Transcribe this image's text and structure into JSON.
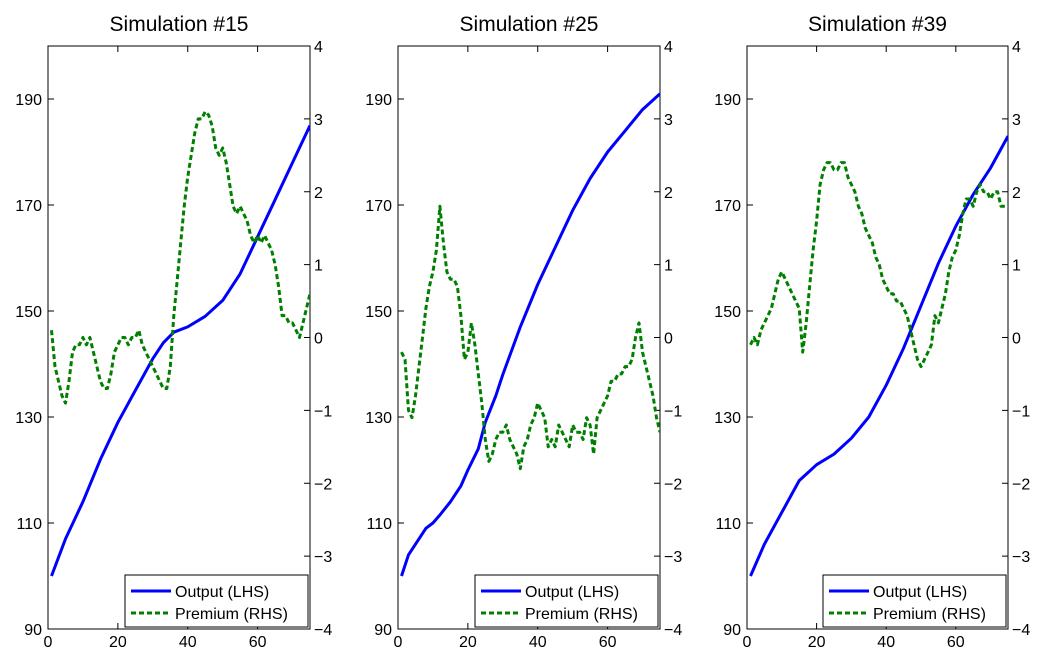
{
  "chart_data": [
    {
      "type": "line",
      "title": "Simulation #15",
      "xlim": [
        0,
        75
      ],
      "xticks": [
        0,
        20,
        40,
        60
      ],
      "ylim_left": [
        90,
        200
      ],
      "yticks_left": [
        90,
        110,
        130,
        150,
        170,
        190
      ],
      "ylim_right": [
        -4,
        4
      ],
      "yticks_right": [
        -4,
        -3,
        -2,
        -1,
        0,
        1,
        2,
        3,
        4
      ],
      "legend": {
        "position": "bottom-right",
        "entries": [
          "Output (LHS)",
          "Premium (RHS)"
        ]
      },
      "series": [
        {
          "name": "Output (LHS)",
          "axis": "left",
          "color": "#0000ff",
          "style": "solid",
          "x": [
            1,
            5,
            10,
            15,
            20,
            25,
            30,
            33,
            36,
            40,
            45,
            50,
            55,
            60,
            65,
            70,
            75
          ],
          "y": [
            100,
            107,
            114,
            122,
            129,
            135,
            141,
            144,
            146,
            147,
            149,
            152,
            157,
            164,
            171,
            178,
            185
          ]
        },
        {
          "name": "Premium (RHS)",
          "axis": "right",
          "color": "#008000",
          "style": "dashed",
          "x": [
            1,
            2,
            3,
            4,
            5,
            6,
            7,
            8,
            9,
            10,
            11,
            12,
            13,
            14,
            15,
            16,
            17,
            18,
            19,
            20,
            21,
            22,
            23,
            24,
            25,
            26,
            27,
            28,
            29,
            30,
            31,
            32,
            33,
            34,
            35,
            36,
            37,
            38,
            39,
            40,
            41,
            42,
            43,
            44,
            45,
            46,
            47,
            48,
            49,
            50,
            51,
            52,
            53,
            54,
            55,
            56,
            57,
            58,
            59,
            60,
            61,
            62,
            63,
            64,
            65,
            66,
            67,
            68,
            69,
            70,
            71,
            72,
            73,
            74,
            75
          ],
          "y": [
            0.1,
            -0.4,
            -0.6,
            -0.8,
            -0.9,
            -0.6,
            -0.2,
            -0.1,
            -0.1,
            0.0,
            -0.1,
            0.0,
            -0.2,
            -0.4,
            -0.6,
            -0.7,
            -0.7,
            -0.5,
            -0.2,
            -0.1,
            0.0,
            0.0,
            -0.1,
            0.0,
            0.0,
            0.1,
            -0.1,
            -0.2,
            -0.3,
            -0.4,
            -0.5,
            -0.6,
            -0.7,
            -0.7,
            -0.4,
            0.3,
            0.8,
            1.3,
            1.8,
            2.2,
            2.5,
            2.8,
            3.0,
            3.0,
            3.1,
            3.05,
            2.9,
            2.6,
            2.5,
            2.6,
            2.4,
            2.1,
            1.8,
            1.7,
            1.8,
            1.7,
            1.6,
            1.4,
            1.3,
            1.4,
            1.3,
            1.4,
            1.3,
            1.2,
            1.0,
            0.7,
            0.3,
            0.3,
            0.2,
            0.2,
            0.1,
            0.0,
            0.2,
            0.4,
            0.6
          ]
        }
      ]
    },
    {
      "type": "line",
      "title": "Simulation #25",
      "xlim": [
        0,
        75
      ],
      "xticks": [
        0,
        20,
        40,
        60
      ],
      "ylim_left": [
        90,
        200
      ],
      "yticks_left": [
        90,
        110,
        130,
        150,
        170,
        190
      ],
      "ylim_right": [
        -4,
        4
      ],
      "yticks_right": [
        -4,
        -3,
        -2,
        -1,
        0,
        1,
        2,
        3,
        4
      ],
      "legend": {
        "position": "bottom-right",
        "entries": [
          "Output (LHS)",
          "Premium (RHS)"
        ]
      },
      "series": [
        {
          "name": "Output (LHS)",
          "axis": "left",
          "color": "#0000ff",
          "style": "solid",
          "x": [
            1,
            3,
            5,
            8,
            10,
            12,
            15,
            18,
            20,
            23,
            25,
            28,
            30,
            35,
            40,
            45,
            50,
            55,
            60,
            65,
            70,
            75
          ],
          "y": [
            100,
            104,
            106,
            109,
            110,
            111.5,
            114,
            117,
            120,
            124,
            129,
            134,
            138,
            147,
            155,
            162,
            169,
            175,
            180,
            184,
            188,
            191
          ]
        },
        {
          "name": "Premium (RHS)",
          "axis": "right",
          "color": "#008000",
          "style": "dashed",
          "x": [
            1,
            2,
            3,
            4,
            5,
            6,
            7,
            8,
            9,
            10,
            11,
            12,
            13,
            14,
            15,
            16,
            17,
            18,
            19,
            20,
            21,
            22,
            23,
            24,
            25,
            26,
            27,
            28,
            29,
            30,
            31,
            32,
            33,
            34,
            35,
            36,
            37,
            38,
            39,
            40,
            41,
            42,
            43,
            44,
            45,
            46,
            47,
            48,
            49,
            50,
            51,
            52,
            53,
            54,
            55,
            56,
            57,
            58,
            59,
            60,
            61,
            62,
            63,
            64,
            65,
            66,
            67,
            68,
            69,
            70,
            71,
            72,
            73,
            74,
            75
          ],
          "y": [
            -0.2,
            -0.3,
            -1.0,
            -1.1,
            -0.8,
            -0.4,
            0.0,
            0.4,
            0.7,
            0.9,
            1.2,
            1.8,
            1.3,
            0.9,
            0.8,
            0.8,
            0.7,
            0.3,
            -0.3,
            -0.2,
            0.2,
            -0.1,
            -0.5,
            -0.9,
            -1.4,
            -1.7,
            -1.6,
            -1.4,
            -1.3,
            -1.3,
            -1.2,
            -1.4,
            -1.5,
            -1.6,
            -1.8,
            -1.5,
            -1.4,
            -1.2,
            -1.1,
            -0.9,
            -1.0,
            -1.1,
            -1.5,
            -1.4,
            -1.5,
            -1.2,
            -1.3,
            -1.4,
            -1.5,
            -1.2,
            -1.3,
            -1.3,
            -1.4,
            -1.1,
            -1.2,
            -1.6,
            -1.1,
            -1.0,
            -0.9,
            -0.8,
            -0.6,
            -0.6,
            -0.5,
            -0.5,
            -0.4,
            -0.4,
            -0.3,
            0.0,
            0.2,
            -0.2,
            -0.4,
            -0.6,
            -0.8,
            -1.1,
            -1.3
          ]
        }
      ]
    },
    {
      "type": "line",
      "title": "Simulation #39",
      "xlim": [
        0,
        75
      ],
      "xticks": [
        0,
        20,
        40,
        60
      ],
      "ylim_left": [
        90,
        200
      ],
      "yticks_left": [
        90,
        110,
        130,
        150,
        170,
        190
      ],
      "ylim_right": [
        -4,
        4
      ],
      "yticks_right": [
        -4,
        -3,
        -2,
        -1,
        0,
        1,
        2,
        3,
        4
      ],
      "legend": {
        "position": "bottom-right",
        "entries": [
          "Output (LHS)",
          "Premium (RHS)"
        ]
      },
      "series": [
        {
          "name": "Output (LHS)",
          "axis": "left",
          "color": "#0000ff",
          "style": "solid",
          "x": [
            1,
            5,
            10,
            15,
            20,
            25,
            30,
            35,
            40,
            45,
            50,
            55,
            60,
            65,
            70,
            75
          ],
          "y": [
            100,
            106,
            112,
            118,
            121,
            123,
            126,
            130,
            136,
            143,
            151,
            159,
            166,
            172,
            177,
            183
          ]
        },
        {
          "name": "Premium (RHS)",
          "axis": "right",
          "color": "#008000",
          "style": "dashed",
          "x": [
            1,
            2,
            3,
            4,
            5,
            6,
            7,
            8,
            9,
            10,
            11,
            12,
            13,
            14,
            15,
            16,
            17,
            18,
            19,
            20,
            21,
            22,
            23,
            24,
            25,
            26,
            27,
            28,
            29,
            30,
            31,
            32,
            33,
            34,
            35,
            36,
            37,
            38,
            39,
            40,
            41,
            42,
            43,
            44,
            45,
            46,
            47,
            48,
            49,
            50,
            51,
            52,
            53,
            54,
            55,
            56,
            57,
            58,
            59,
            60,
            61,
            62,
            63,
            64,
            65,
            66,
            67,
            68,
            69,
            70,
            71,
            72,
            73,
            74,
            75
          ],
          "y": [
            -0.1,
            0.0,
            -0.1,
            0.1,
            0.2,
            0.3,
            0.4,
            0.6,
            0.8,
            0.9,
            0.8,
            0.7,
            0.6,
            0.5,
            0.4,
            -0.2,
            0.2,
            0.7,
            1.2,
            1.6,
            2.1,
            2.3,
            2.4,
            2.4,
            2.3,
            2.3,
            2.4,
            2.4,
            2.2,
            2.1,
            2.0,
            1.8,
            1.7,
            1.5,
            1.4,
            1.3,
            1.1,
            1.0,
            0.8,
            0.7,
            0.6,
            0.6,
            0.5,
            0.5,
            0.4,
            0.3,
            0.1,
            -0.1,
            -0.3,
            -0.4,
            -0.3,
            -0.2,
            -0.1,
            0.3,
            0.2,
            0.4,
            0.6,
            0.9,
            1.1,
            1.2,
            1.4,
            1.7,
            1.9,
            1.9,
            1.8,
            2.0,
            2.1,
            2.0,
            2.0,
            1.9,
            2.0,
            2.0,
            1.8,
            1.8,
            1.8
          ]
        }
      ]
    }
  ]
}
